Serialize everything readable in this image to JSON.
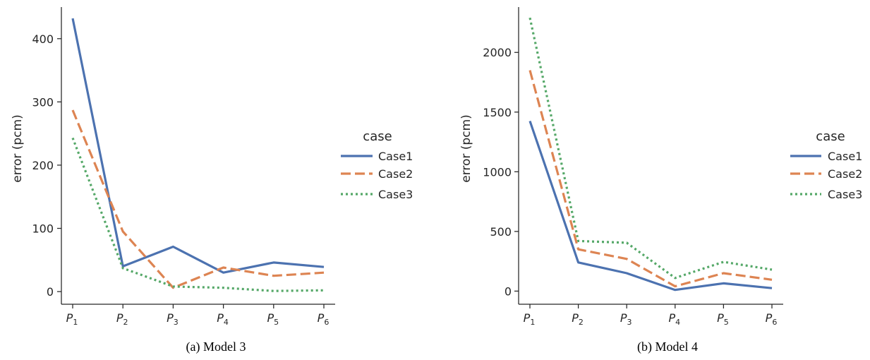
{
  "chart_data": [
    {
      "type": "line",
      "caption": "(a) Model 3",
      "ylabel": "error (pcm)",
      "categories": [
        "P1",
        "P2",
        "P3",
        "P4",
        "P5",
        "P6"
      ],
      "category_labels": [
        {
          "base": "P",
          "sub": "1"
        },
        {
          "base": "P",
          "sub": "2"
        },
        {
          "base": "P",
          "sub": "3"
        },
        {
          "base": "P",
          "sub": "4"
        },
        {
          "base": "P",
          "sub": "5"
        },
        {
          "base": "P",
          "sub": "6"
        }
      ],
      "yticks": [
        0,
        100,
        200,
        300,
        400
      ],
      "ylim": [
        -20,
        450
      ],
      "legend": {
        "title": "case",
        "placement": "right"
      },
      "series": [
        {
          "name": "Case1",
          "style": "solid",
          "color": "#4c72b0",
          "values": [
            432,
            40,
            71,
            30,
            46,
            39
          ]
        },
        {
          "name": "Case2",
          "style": "dashed",
          "color": "#dd8452",
          "values": [
            287,
            95,
            6,
            38,
            25,
            30
          ]
        },
        {
          "name": "Case3",
          "style": "dotted",
          "color": "#55a868",
          "values": [
            243,
            37,
            8,
            6,
            1,
            2
          ]
        }
      ]
    },
    {
      "type": "line",
      "caption": "(b) Model 4",
      "ylabel": "error (pcm)",
      "categories": [
        "P1",
        "P2",
        "P3",
        "P4",
        "P5",
        "P6"
      ],
      "category_labels": [
        {
          "base": "P",
          "sub": "1"
        },
        {
          "base": "P",
          "sub": "2"
        },
        {
          "base": "P",
          "sub": "3"
        },
        {
          "base": "P",
          "sub": "4"
        },
        {
          "base": "P",
          "sub": "5"
        },
        {
          "base": "P",
          "sub": "6"
        }
      ],
      "yticks": [
        0,
        500,
        1000,
        1500,
        2000
      ],
      "ylim": [
        -110,
        2380
      ],
      "legend": {
        "title": "case",
        "placement": "right"
      },
      "series": [
        {
          "name": "Case1",
          "style": "solid",
          "color": "#4c72b0",
          "values": [
            1425,
            240,
            150,
            10,
            65,
            25
          ]
        },
        {
          "name": "Case2",
          "style": "dashed",
          "color": "#dd8452",
          "values": [
            1850,
            350,
            270,
            40,
            150,
            95
          ]
        },
        {
          "name": "Case3",
          "style": "dotted",
          "color": "#55a868",
          "values": [
            2290,
            420,
            405,
            110,
            245,
            180
          ]
        }
      ]
    }
  ]
}
